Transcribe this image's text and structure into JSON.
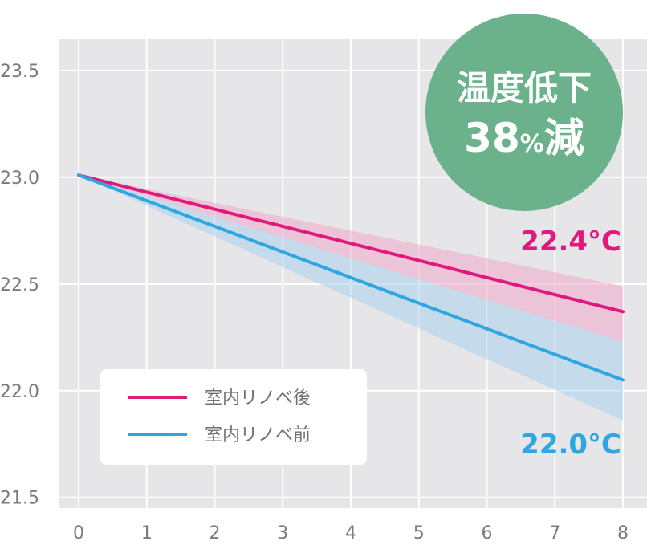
{
  "chart_data": {
    "type": "line",
    "x": [
      0,
      1,
      2,
      3,
      4,
      5,
      6,
      7,
      8
    ],
    "xlim": [
      0,
      8
    ],
    "ylim": [
      21.45,
      23.65
    ],
    "xticks": [
      "0",
      "1",
      "2",
      "3",
      "4",
      "5",
      "6",
      "7",
      "8"
    ],
    "yticks": [
      "21.5",
      "22.0",
      "22.5",
      "23.0",
      "23.5"
    ],
    "ytick_values": [
      21.5,
      22.0,
      22.5,
      23.0,
      23.5
    ],
    "grid": true,
    "legend_position": "bottom-left",
    "series": [
      {
        "name": "室内リノベ後",
        "color": "#e0197d",
        "band_color": "#f0a8c8",
        "start": [
          0,
          23.01
        ],
        "end": [
          8,
          22.37
        ],
        "band_end": [
          22.23,
          22.49
        ],
        "end_label": "22.4°C"
      },
      {
        "name": "室内リノベ前",
        "color": "#2ea6df",
        "band_color": "#a9d1ee",
        "start": [
          0,
          23.01
        ],
        "end": [
          8,
          22.05
        ],
        "band_end": [
          21.86,
          22.23
        ],
        "end_label": "22.0°C"
      }
    ]
  },
  "badge": {
    "line1": "温度低下",
    "number": "38",
    "unit": "%",
    "suffix": "減",
    "color": "#6bb28c"
  }
}
